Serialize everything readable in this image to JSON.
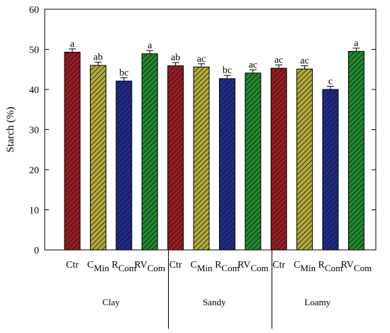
{
  "chart_data": {
    "type": "bar",
    "ylabel": "Starch  (%)",
    "ylim": [
      0,
      60
    ],
    "yticks": [
      0,
      10,
      20,
      30,
      40,
      50,
      60
    ],
    "grid": false,
    "groups": [
      {
        "name": "Clay",
        "bars": [
          {
            "label": "Ctr",
            "sub": "",
            "value": 49.3,
            "error": 0.8,
            "letter": "a",
            "color": "#9b1c23"
          },
          {
            "label": "C",
            "sub": "Min",
            "value": 46.0,
            "error": 0.8,
            "letter": "ab",
            "color": "#b3ac3a"
          },
          {
            "label": "R",
            "sub": "Com",
            "value": 42.1,
            "error": 0.8,
            "letter": "bc",
            "color": "#1f2a8a"
          },
          {
            "label": "RV",
            "sub": "Com",
            "value": 48.9,
            "error": 0.8,
            "letter": "a",
            "color": "#1f8a2e"
          }
        ]
      },
      {
        "name": "Sandy",
        "bars": [
          {
            "label": "Ctr",
            "sub": "",
            "value": 45.9,
            "error": 0.8,
            "letter": "ab",
            "color": "#9b1c23"
          },
          {
            "label": "C",
            "sub": "Min",
            "value": 45.6,
            "error": 0.8,
            "letter": "ac",
            "color": "#b3ac3a"
          },
          {
            "label": "R",
            "sub": "Com",
            "value": 42.7,
            "error": 0.8,
            "letter": "bc",
            "color": "#1f2a8a"
          },
          {
            "label": "RV",
            "sub": "Com",
            "value": 44.1,
            "error": 0.8,
            "letter": "ac",
            "color": "#1f8a2e"
          }
        ]
      },
      {
        "name": "Loamy",
        "bars": [
          {
            "label": "Ctr",
            "sub": "",
            "value": 45.3,
            "error": 0.8,
            "letter": "ac",
            "color": "#9b1c23"
          },
          {
            "label": "C",
            "sub": "Min",
            "value": 45.1,
            "error": 0.8,
            "letter": "ac",
            "color": "#b3ac3a"
          },
          {
            "label": "R",
            "sub": "Com",
            "value": 40.0,
            "error": 0.8,
            "letter": "c",
            "color": "#1f2a8a"
          },
          {
            "label": "RV",
            "sub": "Com",
            "value": 49.5,
            "error": 0.8,
            "letter": "a",
            "color": "#1f8a2e"
          }
        ]
      }
    ]
  }
}
